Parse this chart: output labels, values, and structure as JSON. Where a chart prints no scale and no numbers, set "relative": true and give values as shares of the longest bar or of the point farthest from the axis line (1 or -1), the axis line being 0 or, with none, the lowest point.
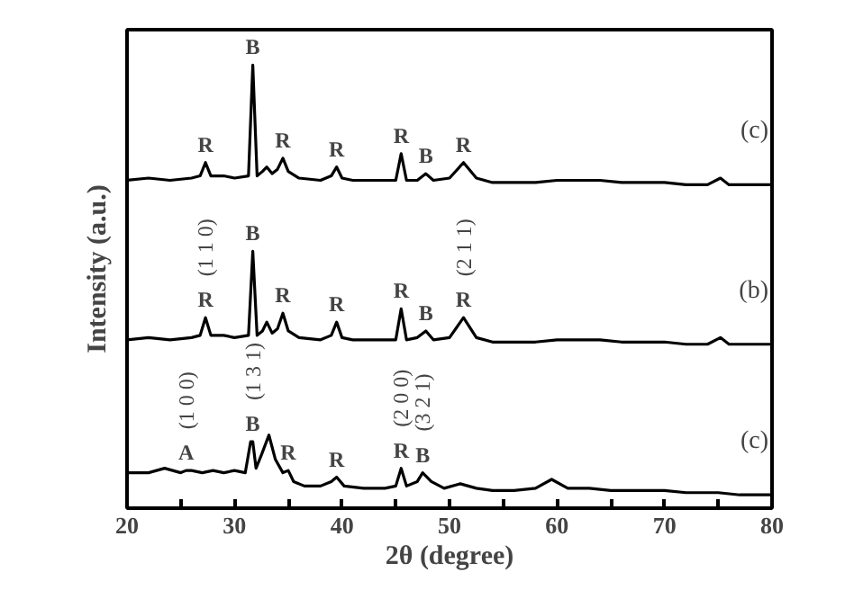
{
  "chart_data": {
    "type": "line",
    "relative": true,
    "xlabel": "2θ (degree)",
    "ylabel": "Intensity (a.u.)",
    "xlim": [
      20,
      80
    ],
    "xticks": [
      20,
      {
        "value": 25,
        "label": null
      },
      30,
      {
        "value": 35,
        "label": null
      },
      40,
      {
        "value": 45,
        "label": null
      },
      50,
      {
        "value": 55,
        "label": null
      },
      60,
      {
        "value": 65,
        "label": null
      },
      70,
      {
        "value": 75,
        "label": null
      },
      80
    ],
    "grid": false,
    "marker": "none",
    "line_style": "solid",
    "series": [
      {
        "name": "(c)",
        "color": "#000000",
        "x": [
          20,
          22,
          24,
          26,
          26.8,
          27.3,
          27.8,
          29,
          30,
          31.3,
          31.7,
          32.1,
          32.6,
          33,
          33.5,
          34,
          34.5,
          35,
          36,
          38,
          39,
          39.5,
          40,
          41,
          43,
          45,
          45.5,
          46,
          47,
          47.8,
          48.5,
          50,
          51.3,
          52.5,
          54,
          56,
          58,
          60,
          62,
          64,
          66,
          68,
          70,
          72,
          74,
          75.2,
          76,
          78,
          80
        ],
        "values": [
          0.74,
          0.745,
          0.74,
          0.745,
          0.75,
          0.78,
          0.75,
          0.75,
          0.745,
          0.75,
          1.0,
          0.75,
          0.76,
          0.77,
          0.755,
          0.765,
          0.79,
          0.76,
          0.745,
          0.74,
          0.75,
          0.77,
          0.745,
          0.74,
          0.74,
          0.74,
          0.8,
          0.74,
          0.74,
          0.755,
          0.74,
          0.745,
          0.78,
          0.745,
          0.735,
          0.735,
          0.735,
          0.74,
          0.74,
          0.74,
          0.735,
          0.735,
          0.735,
          0.73,
          0.73,
          0.745,
          0.73,
          0.73,
          0.73
        ]
      },
      {
        "name": "(b)",
        "color": "#000000",
        "x": [
          20,
          22,
          24,
          26,
          26.8,
          27.3,
          27.8,
          29,
          30,
          31.3,
          31.7,
          32.1,
          32.6,
          33,
          33.5,
          34,
          34.5,
          35,
          36,
          38,
          39,
          39.5,
          40,
          41,
          43,
          45,
          45.5,
          46,
          47,
          47.8,
          48.5,
          50,
          51.3,
          52.5,
          54,
          56,
          58,
          60,
          62,
          64,
          66,
          68,
          70,
          72,
          74,
          75.2,
          76,
          78,
          80
        ],
        "values": [
          0.38,
          0.385,
          0.38,
          0.385,
          0.39,
          0.43,
          0.39,
          0.39,
          0.385,
          0.39,
          0.58,
          0.39,
          0.4,
          0.42,
          0.395,
          0.405,
          0.44,
          0.4,
          0.385,
          0.38,
          0.39,
          0.42,
          0.385,
          0.38,
          0.38,
          0.38,
          0.45,
          0.38,
          0.385,
          0.4,
          0.38,
          0.385,
          0.43,
          0.385,
          0.375,
          0.375,
          0.375,
          0.38,
          0.38,
          0.38,
          0.375,
          0.375,
          0.375,
          0.37,
          0.37,
          0.385,
          0.37,
          0.37,
          0.37
        ]
      },
      {
        "name": "(c)",
        "color": "#000000",
        "x": [
          20,
          22,
          23.5,
          25,
          25.5,
          26,
          27,
          28,
          29,
          30,
          31,
          31.5,
          31.7,
          32,
          32.5,
          33.2,
          33.8,
          34.5,
          35,
          35.5,
          36.5,
          38,
          39,
          39.5,
          40.2,
          42,
          44,
          45,
          45.5,
          46,
          47,
          47.5,
          48.3,
          49.5,
          51,
          52.5,
          54,
          56,
          58,
          59.5,
          61,
          63,
          65,
          67,
          70,
          72,
          75,
          77,
          80
        ],
        "values": [
          0.08,
          0.08,
          0.09,
          0.08,
          0.085,
          0.085,
          0.08,
          0.085,
          0.08,
          0.085,
          0.08,
          0.15,
          0.15,
          0.09,
          0.12,
          0.165,
          0.11,
          0.08,
          0.085,
          0.06,
          0.05,
          0.05,
          0.06,
          0.07,
          0.05,
          0.045,
          0.045,
          0.05,
          0.09,
          0.05,
          0.06,
          0.08,
          0.06,
          0.045,
          0.055,
          0.045,
          0.04,
          0.04,
          0.045,
          0.065,
          0.045,
          0.045,
          0.04,
          0.04,
          0.04,
          0.035,
          0.035,
          0.03,
          0.03
        ]
      }
    ],
    "annotations": [
      {
        "text": "R",
        "x": 27.3,
        "y": 0.78
      },
      {
        "text": "B",
        "x": 31.7,
        "y": 1.0
      },
      {
        "text": "R",
        "x": 34.5,
        "y": 0.79
      },
      {
        "text": "R",
        "x": 39.5,
        "y": 0.77
      },
      {
        "text": "R",
        "x": 45.5,
        "y": 0.8
      },
      {
        "text": "B",
        "x": 47.8,
        "y": 0.755
      },
      {
        "text": "R",
        "x": 51.3,
        "y": 0.78
      },
      {
        "text": "R",
        "x": 27.3,
        "y": 0.43
      },
      {
        "text": "(1 1 0)",
        "x": 27.3,
        "y": 0.43
      },
      {
        "text": "B",
        "x": 31.7,
        "y": 0.58
      },
      {
        "text": "R",
        "x": 34.5,
        "y": 0.44
      },
      {
        "text": "R",
        "x": 39.5,
        "y": 0.42
      },
      {
        "text": "R",
        "x": 45.5,
        "y": 0.45
      },
      {
        "text": "B",
        "x": 47.8,
        "y": 0.4
      },
      {
        "text": "R",
        "x": 51.3,
        "y": 0.43
      },
      {
        "text": "(2 1 1)",
        "x": 51.3,
        "y": 0.43
      },
      {
        "text": "A",
        "x": 25.5,
        "y": 0.085
      },
      {
        "text": "(1 0 0)",
        "x": 25.5,
        "y": 0.085
      },
      {
        "text": "B",
        "x": 31.7,
        "y": 0.15
      },
      {
        "text": "(1 3 1)",
        "x": 31.7,
        "y": 0.15
      },
      {
        "text": "R",
        "x": 35,
        "y": 0.085
      },
      {
        "text": "R",
        "x": 39.5,
        "y": 0.07
      },
      {
        "text": "R",
        "x": 45.5,
        "y": 0.09
      },
      {
        "text": "(2 0 0)",
        "x": 45.5,
        "y": 0.09
      },
      {
        "text": "B",
        "x": 47.5,
        "y": 0.08
      },
      {
        "text": "(3 2 1)",
        "x": 47.5,
        "y": 0.08
      }
    ]
  }
}
